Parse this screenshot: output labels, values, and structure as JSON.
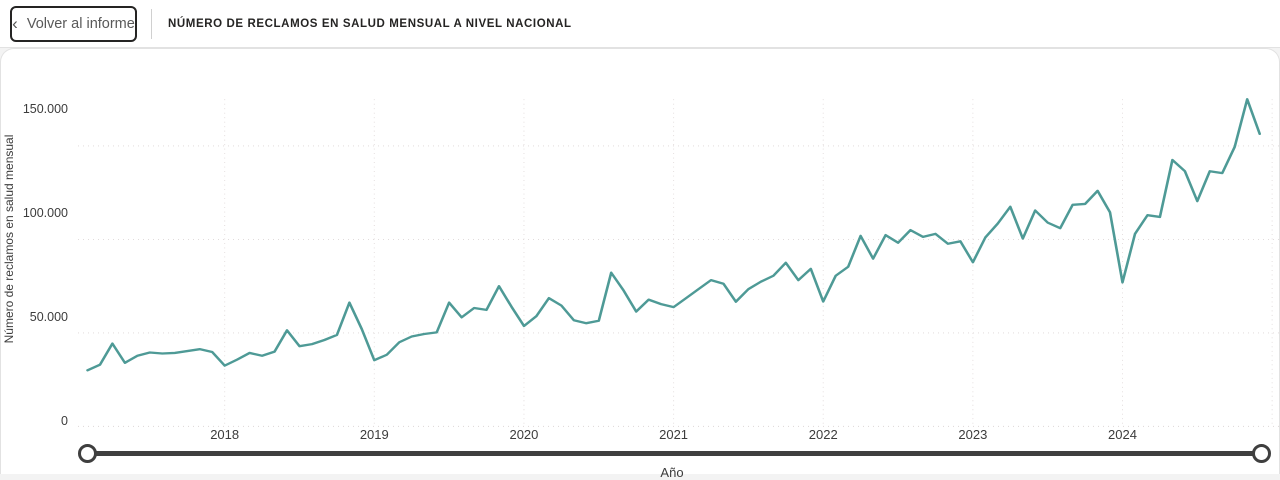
{
  "header": {
    "back_icon": "‹",
    "back_label": "Volver al informe",
    "title": "NÚMERO DE RECLAMOS EN SALUD MENSUAL A NIVEL NACIONAL"
  },
  "chart_data": {
    "type": "line",
    "title": "NÚMERO DE RECLAMOS EN SALUD MENSUAL A NIVEL NACIONAL",
    "ylabel": "Número de reclamos en salud mensual",
    "xlabel": "Año",
    "x_unit": "month",
    "start_month": "2017-02",
    "end_month": "2024-12",
    "x_tick_labels": [
      "2018",
      "2019",
      "2020",
      "2021",
      "2022",
      "2023",
      "2024"
    ],
    "y_ticks": [
      {
        "label": "0",
        "value": 0
      },
      {
        "label": "50.000",
        "value": 50000
      },
      {
        "label": "100.000",
        "value": 100000
      },
      {
        "label": "150.000",
        "value": 150000
      }
    ],
    "ylim": [
      0,
      175000
    ],
    "grid": "dotted",
    "legend": "none",
    "line_color": "#4e9a96",
    "series": [
      {
        "name": "Número de reclamos en salud mensual",
        "values": [
          30000,
          33000,
          44300,
          34000,
          37800,
          39500,
          39000,
          39300,
          40300,
          41300,
          39800,
          32500,
          35700,
          39300,
          37800,
          40000,
          51400,
          42900,
          44000,
          46200,
          48900,
          66200,
          52000,
          35400,
          38300,
          45000,
          48100,
          49400,
          50300,
          66200,
          58300,
          63300,
          62300,
          75000,
          64000,
          53700,
          59000,
          68600,
          64600,
          56800,
          55200,
          56500,
          82200,
          72600,
          61400,
          67800,
          65400,
          63800,
          68600,
          73400,
          78200,
          76300,
          66700,
          73400,
          77400,
          80600,
          87500,
          78200,
          84300,
          66800,
          80600,
          85400,
          101900,
          89700,
          102300,
          98200,
          105000,
          101400,
          103000,
          97700,
          99000,
          87800,
          101000,
          108500,
          117500,
          100500,
          115500,
          109000,
          106000,
          118500,
          119000,
          126000,
          114500,
          77000,
          103000,
          113000,
          112000,
          142500,
          136500,
          120500,
          136500,
          135500,
          149500,
          175000,
          156500
        ]
      }
    ]
  }
}
